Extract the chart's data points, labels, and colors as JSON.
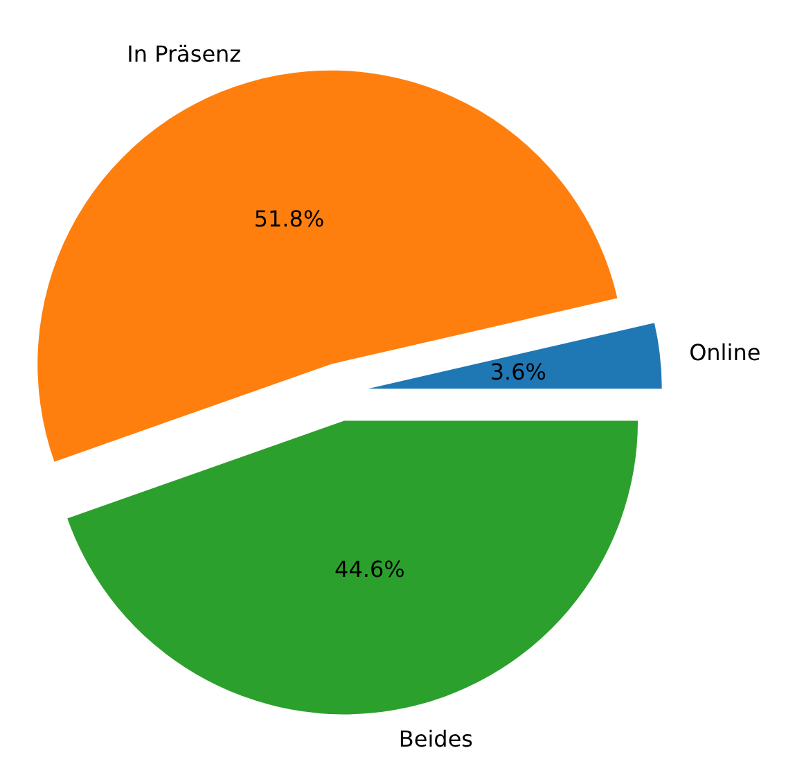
{
  "chart_data": {
    "type": "pie",
    "categories": [
      "Online",
      "In Präsenz",
      "Beides"
    ],
    "values": [
      3.6,
      51.8,
      44.6
    ],
    "colors": [
      "#1f77b4",
      "#ff7f0e",
      "#2ca02c"
    ],
    "value_labels": [
      "3.6%",
      "51.8%",
      "44.6%"
    ],
    "legend": false
  }
}
